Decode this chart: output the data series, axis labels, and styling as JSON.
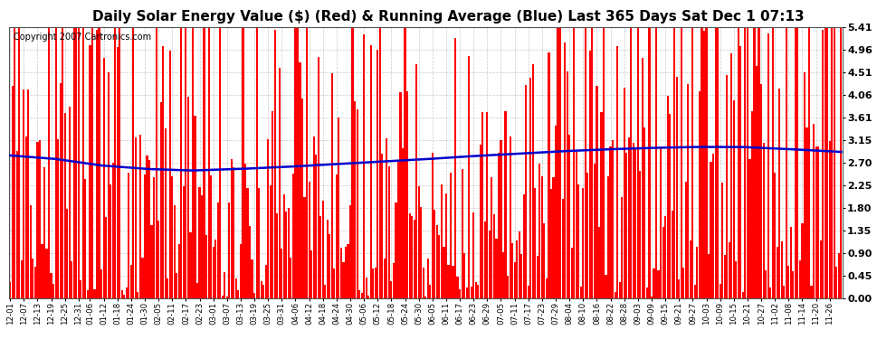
{
  "title": "Daily Solar Energy Value ($) (Red) & Running Average (Blue) Last 365 Days Sat Dec 1 07:13",
  "copyright_text": "Copyright 2007 Cartronics.com",
  "yticks": [
    0.0,
    0.45,
    0.9,
    1.35,
    1.8,
    2.25,
    2.7,
    3.15,
    3.61,
    4.06,
    4.51,
    4.96,
    5.41
  ],
  "ymax": 5.41,
  "ymin": 0.0,
  "bar_color": "#ff0000",
  "avg_line_color": "#0000cc",
  "background_color": "#ffffff",
  "grid_color": "#aaaaaa",
  "title_fontsize": 11,
  "copyright_fontsize": 7,
  "xtick_fontsize": 6.2,
  "ytick_fontsize": 8,
  "xtick_labels": [
    "12-01",
    "12-07",
    "12-13",
    "12-19",
    "12-25",
    "12-31",
    "01-06",
    "01-12",
    "01-18",
    "01-24",
    "01-30",
    "02-05",
    "02-11",
    "02-17",
    "02-23",
    "03-01",
    "03-07",
    "03-13",
    "03-19",
    "03-25",
    "03-31",
    "04-06",
    "04-12",
    "04-18",
    "04-24",
    "04-30",
    "05-06",
    "05-12",
    "05-18",
    "05-24",
    "05-30",
    "06-05",
    "06-11",
    "06-17",
    "06-23",
    "06-29",
    "07-05",
    "07-11",
    "07-17",
    "07-23",
    "07-29",
    "08-04",
    "08-10",
    "08-16",
    "08-22",
    "08-28",
    "09-03",
    "09-09",
    "09-15",
    "09-21",
    "09-27",
    "10-03",
    "10-09",
    "10-15",
    "10-21",
    "10-27",
    "11-02",
    "11-08",
    "11-14",
    "11-20",
    "11-26"
  ],
  "xtick_positions_days": [
    0,
    6,
    12,
    18,
    24,
    30,
    35,
    41,
    47,
    53,
    59,
    65,
    71,
    77,
    83,
    89,
    95,
    101,
    107,
    113,
    119,
    125,
    131,
    137,
    143,
    149,
    155,
    161,
    167,
    173,
    179,
    185,
    191,
    197,
    203,
    209,
    215,
    221,
    227,
    233,
    239,
    245,
    251,
    257,
    263,
    269,
    275,
    281,
    287,
    293,
    299,
    305,
    311,
    317,
    323,
    329,
    335,
    341,
    347,
    353,
    359
  ],
  "running_avg_points": [
    [
      0,
      2.85
    ],
    [
      20,
      2.78
    ],
    [
      40,
      2.65
    ],
    [
      60,
      2.58
    ],
    [
      80,
      2.55
    ],
    [
      100,
      2.58
    ],
    [
      120,
      2.62
    ],
    [
      140,
      2.67
    ],
    [
      160,
      2.72
    ],
    [
      180,
      2.77
    ],
    [
      200,
      2.83
    ],
    [
      220,
      2.88
    ],
    [
      240,
      2.93
    ],
    [
      260,
      2.97
    ],
    [
      280,
      3.0
    ],
    [
      300,
      3.02
    ],
    [
      320,
      3.02
    ],
    [
      340,
      2.98
    ],
    [
      364,
      2.92
    ]
  ]
}
